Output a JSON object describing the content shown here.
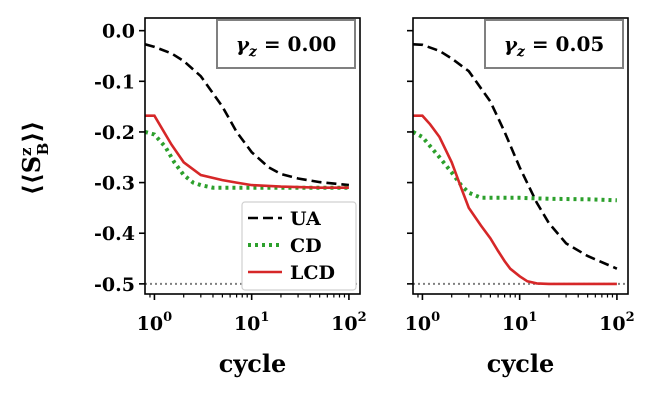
{
  "chart_data": {
    "type": "line",
    "ylabel": "⟨⟨S",
    "ylabel_sup": "z",
    "ylabel_sub": "B",
    "ylabel_close": "⟩⟩",
    "shared_y": true,
    "ylim": [
      -0.52,
      0.025
    ],
    "y_ticks": [
      0.0,
      -0.1,
      -0.2,
      -0.3,
      -0.4,
      -0.5
    ],
    "y_tick_labels": [
      "0.0",
      "-0.1",
      "-0.2",
      "-0.3",
      "-0.4",
      "-0.5"
    ],
    "x_scale": "log",
    "xlim": [
      0.8,
      130
    ],
    "x_ticks": [
      1,
      10,
      100
    ],
    "x_tick_labels": [
      {
        "base": "10",
        "exp": "0"
      },
      {
        "base": "10",
        "exp": "1"
      },
      {
        "base": "10",
        "exp": "2"
      }
    ],
    "colors": {
      "UA": "#000000",
      "CD": "#2ca02c",
      "LCD": "#d62728",
      "reference": "#808080"
    },
    "legend": {
      "placement": "lower-right",
      "panel": 0,
      "entries": [
        "UA",
        "CD",
        "LCD"
      ]
    },
    "panels": [
      {
        "xlabel": "cycle",
        "annotation": {
          "symbol": "γ",
          "sub": "z",
          "text": " = 0.00"
        },
        "reference_line": -0.5,
        "series": [
          {
            "name": "UA",
            "style": "dashed",
            "x": [
              0.8,
              1,
              1.5,
              2,
              3,
              5,
              7,
              10,
              15,
              20,
              30,
              50,
              100
            ],
            "y": [
              -0.027,
              -0.032,
              -0.045,
              -0.06,
              -0.09,
              -0.15,
              -0.2,
              -0.24,
              -0.27,
              -0.283,
              -0.292,
              -0.299,
              -0.305
            ]
          },
          {
            "name": "CD",
            "style": "dotted",
            "x": [
              0.8,
              1,
              1.3,
              1.6,
              2,
              2.5,
              3,
              4,
              5,
              10,
              20,
              50,
              100
            ],
            "y": [
              -0.2,
              -0.205,
              -0.23,
              -0.26,
              -0.285,
              -0.3,
              -0.305,
              -0.31,
              -0.31,
              -0.31,
              -0.31,
              -0.31,
              -0.31
            ]
          },
          {
            "name": "LCD",
            "style": "solid",
            "x": [
              0.8,
              1,
              1.5,
              2,
              3,
              5,
              7,
              10,
              20,
              50,
              100
            ],
            "y": [
              -0.168,
              -0.168,
              -0.225,
              -0.26,
              -0.285,
              -0.295,
              -0.3,
              -0.305,
              -0.308,
              -0.31,
              -0.31
            ]
          }
        ]
      },
      {
        "xlabel": "cycle",
        "annotation": {
          "symbol": "γ",
          "sub": "z",
          "text": " = 0.05"
        },
        "reference_line": -0.5,
        "series": [
          {
            "name": "UA",
            "style": "dashed",
            "x": [
              0.8,
              1,
              1.5,
              2,
              3,
              5,
              7,
              10,
              15,
              20,
              30,
              50,
              100
            ],
            "y": [
              -0.027,
              -0.028,
              -0.04,
              -0.055,
              -0.08,
              -0.14,
              -0.2,
              -0.27,
              -0.34,
              -0.38,
              -0.42,
              -0.445,
              -0.47
            ]
          },
          {
            "name": "CD",
            "style": "dotted",
            "x": [
              0.8,
              1,
              1.5,
              2,
              2.5,
              3,
              4,
              5,
              10,
              20,
              50,
              100
            ],
            "y": [
              -0.2,
              -0.21,
              -0.25,
              -0.28,
              -0.305,
              -0.32,
              -0.33,
              -0.33,
              -0.33,
              -0.332,
              -0.333,
              -0.335
            ]
          },
          {
            "name": "LCD",
            "style": "solid",
            "x": [
              0.8,
              1,
              1.2,
              1.5,
              2,
              2.5,
              3,
              4,
              5,
              6,
              7,
              8,
              10,
              12,
              15,
              20,
              30,
              50,
              100
            ],
            "y": [
              -0.168,
              -0.168,
              -0.185,
              -0.21,
              -0.26,
              -0.31,
              -0.35,
              -0.385,
              -0.41,
              -0.435,
              -0.455,
              -0.47,
              -0.485,
              -0.495,
              -0.499,
              -0.5,
              -0.5,
              -0.5,
              -0.5
            ]
          }
        ]
      }
    ]
  }
}
